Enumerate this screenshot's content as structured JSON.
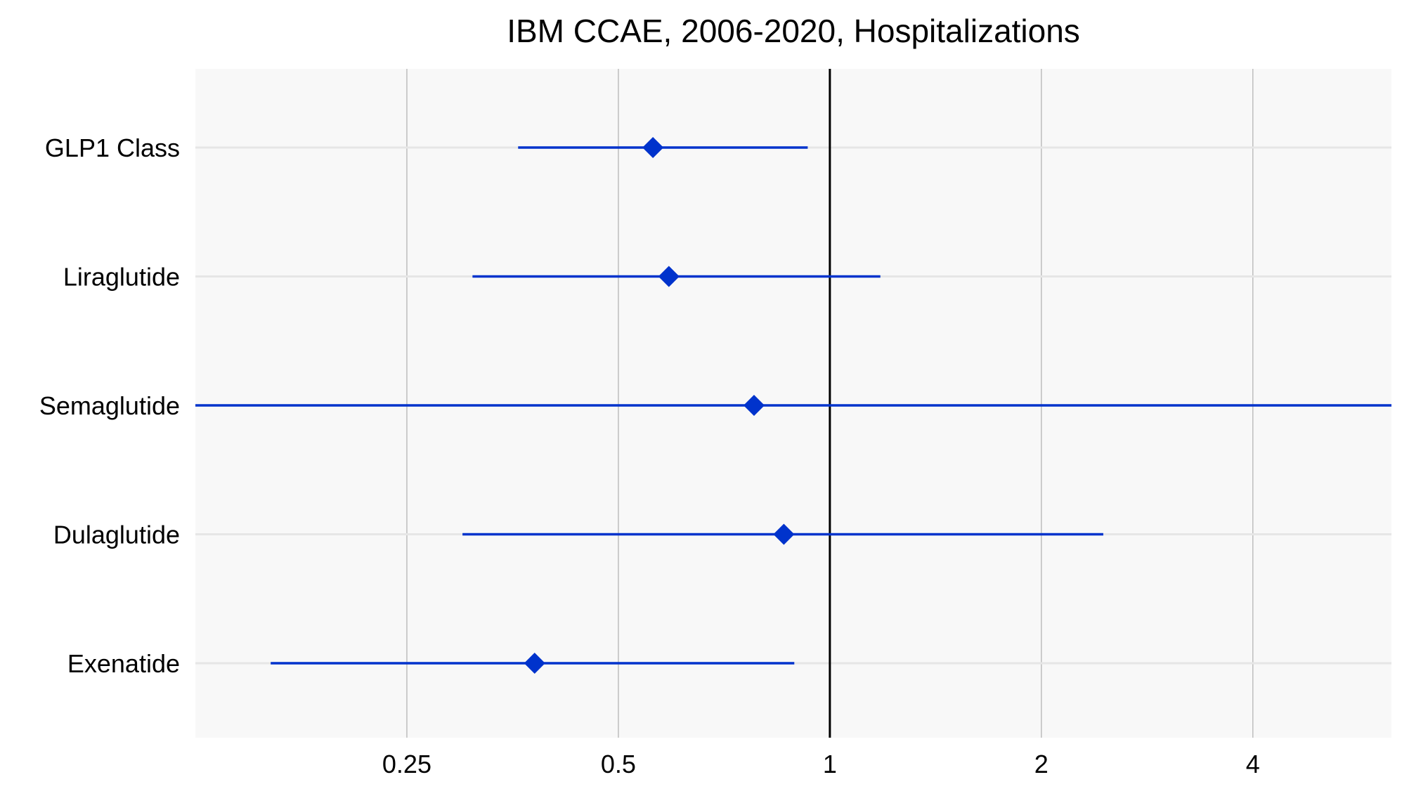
{
  "chart_data": {
    "type": "forest",
    "title": "IBM CCAE, 2006-2020, Hospitalizations",
    "xlabel": "",
    "ylabel": "",
    "x_scale": "log2",
    "xlim": [
      0.125,
      6.3
    ],
    "x_ticks": [
      {
        "value": 0.25,
        "label": "0.25"
      },
      {
        "value": 0.5,
        "label": "0.5"
      },
      {
        "value": 1,
        "label": "1"
      },
      {
        "value": 2,
        "label": "2"
      },
      {
        "value": 4,
        "label": "4"
      }
    ],
    "reference_line": 1,
    "grid": true,
    "categories": [
      "GLP1 Class",
      "Liraglutide",
      "Semaglutide",
      "Dulaglutide",
      "Exenatide"
    ],
    "estimates": [
      {
        "label": "GLP1 Class",
        "estimate": 0.56,
        "lower": 0.36,
        "upper": 0.93
      },
      {
        "label": "Liraglutide",
        "estimate": 0.59,
        "lower": 0.31,
        "upper": 1.18
      },
      {
        "label": "Semaglutide",
        "estimate": 0.78,
        "lower": 0.125,
        "upper": 6.3
      },
      {
        "label": "Dulaglutide",
        "estimate": 0.86,
        "lower": 0.3,
        "upper": 2.45
      },
      {
        "label": "Exenatide",
        "estimate": 0.38,
        "lower": 0.16,
        "upper": 0.89
      }
    ],
    "colors": {
      "point": "#0033CC",
      "interval": "#0033CC",
      "reference": "#000000",
      "panel_background": "#F8F8F8",
      "vertical_grid": "#BDBDBD",
      "horizontal_grid": "#E6E6E6"
    }
  }
}
